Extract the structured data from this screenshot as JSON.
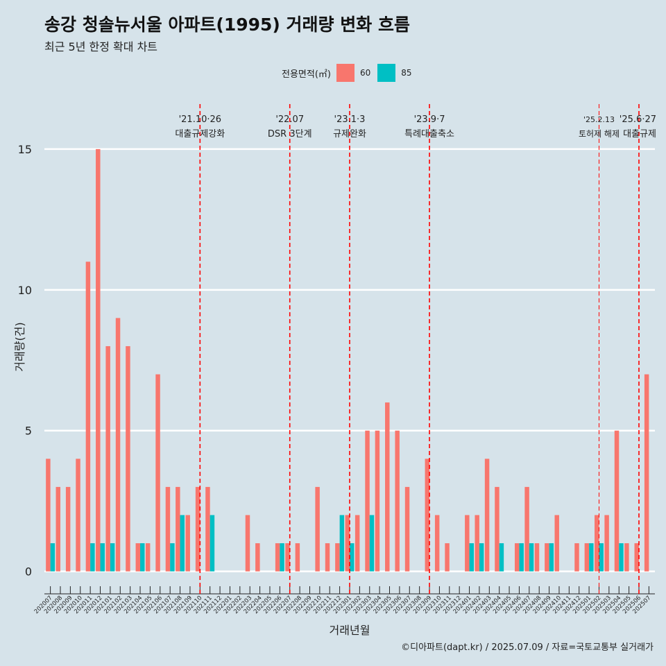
{
  "title": "송강 청솔뉴서울 아파트(1995) 거래량 변화 흐름",
  "subtitle": "최근 5년 한정 확대 차트",
  "legend": {
    "title": "전용면적(㎡)",
    "items": [
      {
        "label": "60",
        "color": "#F8766D"
      },
      {
        "label": "85",
        "color": "#00BFC4"
      }
    ]
  },
  "caption": "©디아파트(dapt.kr) / 2025.07.09 / 자료=국토교통부 실거래가",
  "chart_data": {
    "type": "bar",
    "xlabel": "거래년월",
    "ylabel": "거래량(건)",
    "ylim": [
      0,
      16
    ],
    "yticks": [
      0,
      5,
      10,
      15
    ],
    "grid": true,
    "legend_position": "top",
    "categories": [
      "202007",
      "202008",
      "202009",
      "202010",
      "202011",
      "202012",
      "202101",
      "202102",
      "202103",
      "202104",
      "202105",
      "202106",
      "202107",
      "202108",
      "202109",
      "202110",
      "202111",
      "202112",
      "202201",
      "202202",
      "202203",
      "202204",
      "202205",
      "202206",
      "202207",
      "202208",
      "202209",
      "202210",
      "202211",
      "202212",
      "202301",
      "202302",
      "202303",
      "202304",
      "202305",
      "202306",
      "202307",
      "202308",
      "202309",
      "202310",
      "202311",
      "202312",
      "202401",
      "202402",
      "202403",
      "202404",
      "202405",
      "202406",
      "202407",
      "202408",
      "202409",
      "202410",
      "202411",
      "202412",
      "202501",
      "202502",
      "202503",
      "202504",
      "202505",
      "202506",
      "202507"
    ],
    "series": [
      {
        "name": "60",
        "color": "#F8766D",
        "values": [
          4,
          3,
          3,
          4,
          11,
          15,
          8,
          9,
          8,
          1,
          1,
          7,
          3,
          3,
          2,
          3,
          3,
          0,
          0,
          0,
          2,
          1,
          0,
          1,
          1,
          1,
          0,
          3,
          1,
          1,
          2,
          2,
          5,
          5,
          6,
          5,
          3,
          0,
          4,
          2,
          1,
          0,
          2,
          2,
          4,
          3,
          0,
          1,
          3,
          1,
          1,
          2,
          0,
          1,
          1,
          2,
          2,
          5,
          1,
          1,
          7
        ]
      },
      {
        "name": "85",
        "color": "#00BFC4",
        "values": [
          1,
          0,
          0,
          0,
          1,
          1,
          1,
          0,
          0,
          1,
          0,
          0,
          1,
          2,
          0,
          0,
          2,
          0,
          0,
          0,
          0,
          0,
          0,
          1,
          0,
          0,
          0,
          0,
          0,
          2,
          1,
          0,
          2,
          0,
          0,
          0,
          0,
          0,
          0,
          0,
          0,
          0,
          1,
          1,
          0,
          1,
          0,
          1,
          1,
          0,
          1,
          0,
          0,
          0,
          1,
          1,
          0,
          1,
          0,
          0,
          0
        ]
      }
    ],
    "events": [
      {
        "category": "202110",
        "date": "'21.10·26",
        "label": "대출규제강화"
      },
      {
        "category": "202207",
        "date": "'22.07",
        "label": "DSR 3단계"
      },
      {
        "category": "202301",
        "date": "'23.1·3",
        "label": "규제완화"
      },
      {
        "category": "202309",
        "date": "'23.9·7",
        "label": "특례대출축소"
      },
      {
        "category": "202502",
        "date": "'25.2.13",
        "label": "토허제 해제"
      },
      {
        "category": "202506",
        "date": "'25.6·27",
        "label": "대출규제"
      }
    ]
  }
}
